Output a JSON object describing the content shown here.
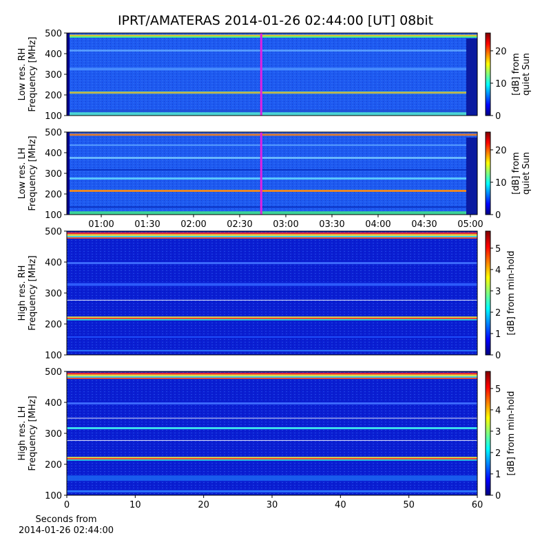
{
  "title": "IPRT/AMATERAS 2014-01-26 02:44:00 [UT]   08bit",
  "chart_data": [
    {
      "type": "spectrogram",
      "ylabel": [
        "Low res. RH",
        "Frequency [MHz]"
      ],
      "xlim": [
        37.6,
        304.5
      ],
      "ylim": [
        100,
        500
      ],
      "yticks": [
        100,
        200,
        300,
        400,
        500
      ],
      "marker": {
        "x": 164,
        "color": "#e020e0"
      },
      "colorbar": {
        "label": [
          "[dB] from",
          "quiet Sun"
        ],
        "lim": [
          0,
          25.5
        ],
        "ticks": [
          0,
          10,
          20
        ]
      }
    },
    {
      "type": "spectrogram",
      "ylabel": [
        "Low res. LH",
        "Frequency [MHz]"
      ],
      "xlim": [
        37.6,
        304.5
      ],
      "ylim": [
        100,
        500
      ],
      "yticks": [
        100,
        200,
        300,
        400,
        500
      ],
      "xticks": [
        {
          "value": 60,
          "label": "01:00"
        },
        {
          "value": 90,
          "label": "01:30"
        },
        {
          "value": 120,
          "label": "02:00"
        },
        {
          "value": 150,
          "label": "02:30"
        },
        {
          "value": 180,
          "label": "03:00"
        },
        {
          "value": 210,
          "label": "03:30"
        },
        {
          "value": 240,
          "label": "04:00"
        },
        {
          "value": 270,
          "label": "04:30"
        },
        {
          "value": 300,
          "label": "05:00"
        }
      ],
      "marker": {
        "x": 164,
        "color": "#e020e0"
      },
      "colorbar": {
        "label": [
          "[dB] from",
          "quiet Sun"
        ],
        "lim": [
          0,
          25.5
        ],
        "ticks": [
          0,
          10,
          20
        ]
      }
    },
    {
      "type": "spectrogram",
      "ylabel": [
        "High res. RH",
        "Frequency [MHz]"
      ],
      "xlim": [
        0,
        60
      ],
      "ylim": [
        100,
        500
      ],
      "yticks": [
        100,
        200,
        300,
        400,
        500
      ],
      "colorbar": {
        "label": [
          "[dB] from min-hold"
        ],
        "lim": [
          0,
          5.8
        ],
        "ticks": [
          0,
          1,
          2,
          3,
          4,
          5
        ]
      }
    },
    {
      "type": "spectrogram",
      "ylabel": [
        "High res. LH",
        "Frequency [MHz]"
      ],
      "xlim": [
        0,
        60
      ],
      "ylim": [
        100,
        500
      ],
      "yticks": [
        100,
        200,
        300,
        400,
        500
      ],
      "xticks": [
        0,
        10,
        20,
        30,
        40,
        50,
        60
      ],
      "xlabel": [
        "Seconds from",
        "2014-01-26 02:44:00"
      ],
      "colorbar": {
        "label": [
          "[dB] from min-hold"
        ],
        "lim": [
          0,
          5.8
        ],
        "ticks": [
          0,
          1,
          2,
          3,
          4,
          5
        ]
      }
    }
  ]
}
